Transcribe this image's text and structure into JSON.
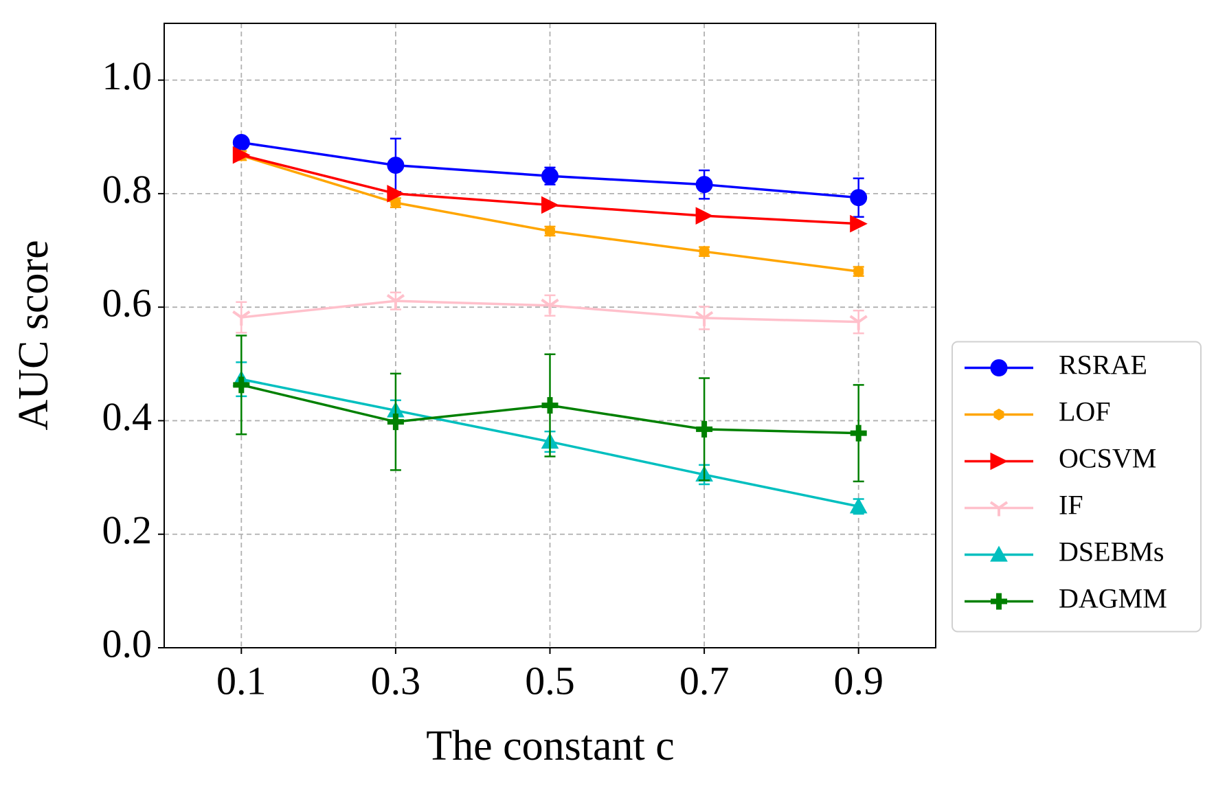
{
  "chart_data": {
    "type": "line",
    "xlabel": "The constant c",
    "ylabel": "AUC score",
    "x": [
      0.1,
      0.3,
      0.5,
      0.7,
      0.9
    ],
    "xlim": [
      0,
      1
    ],
    "xticks": [
      0.1,
      0.3,
      0.5,
      0.7,
      0.9
    ],
    "ylim": [
      0,
      1.1
    ],
    "yticks": [
      {
        "value": 0,
        "label": "0.0"
      },
      0.2,
      0.4,
      0.6,
      0.8,
      {
        "value": 1,
        "label": "1.0"
      }
    ],
    "grid": true,
    "legend": "center right",
    "series": [
      {
        "name": "RSRAE",
        "color": "#0000ff",
        "marker": "circle",
        "values": [
          0.89,
          0.85,
          0.831,
          0.816,
          0.793
        ],
        "errors": [
          0.008,
          0.047,
          0.015,
          0.025,
          0.034
        ]
      },
      {
        "name": "LOF",
        "color": "#ffa500",
        "marker": "hexagon",
        "values": [
          0.867,
          0.784,
          0.734,
          0.698,
          0.663
        ],
        "errors": [
          0.008,
          0.008,
          0.008,
          0.008,
          0.008
        ]
      },
      {
        "name": "OCSVM",
        "color": "#ff0000",
        "marker": "triangle-right",
        "values": [
          0.868,
          0.8,
          0.78,
          0.761,
          0.747
        ]
      },
      {
        "name": "IF",
        "color": "#ffc0cb",
        "marker": "tri-down",
        "values": [
          0.582,
          0.611,
          0.603,
          0.581,
          0.574
        ],
        "errors": [
          0.027,
          0.015,
          0.018,
          0.02,
          0.02
        ]
      },
      {
        "name": "DSEBMs",
        "color": "#00bfbf",
        "marker": "triangle-up",
        "values": [
          0.473,
          0.418,
          0.363,
          0.305,
          0.249
        ],
        "errors": [
          0.03,
          0.018,
          0.018,
          0.017,
          0.013
        ]
      },
      {
        "name": "DAGMM",
        "color": "#008000",
        "marker": "plus",
        "values": [
          0.463,
          0.398,
          0.427,
          0.385,
          0.378
        ],
        "errors": [
          0.087,
          0.085,
          0.09,
          0.09,
          0.085
        ]
      }
    ]
  }
}
